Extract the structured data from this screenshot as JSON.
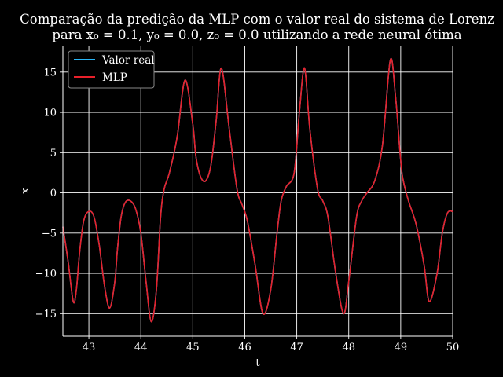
{
  "chart_data": {
    "type": "line",
    "title_line1": "Comparação da predição da MLP com o valor real do sistema de Lorenz",
    "title_line2": "para x₀ = 0.1, y₀ = 0.0, z₀ = 0.0 utilizando a rede neural ótima",
    "xlabel": "t",
    "ylabel": "x",
    "xlim": [
      42.5,
      50.0
    ],
    "ylim": [
      -17.8,
      18.3
    ],
    "xticks": [
      43,
      44,
      45,
      46,
      47,
      48,
      49,
      50
    ],
    "yticks": [
      15,
      10,
      5,
      0,
      -5,
      -10,
      -15
    ],
    "xtick_labels": [
      "43",
      "44",
      "45",
      "46",
      "47",
      "48",
      "49",
      "50"
    ],
    "ytick_labels": [
      "15",
      "10",
      "5",
      "0",
      "−5",
      "−10",
      "−15"
    ],
    "grid": true,
    "legend_position": "top-left",
    "background": "#000000",
    "foreground": "#ffffff",
    "series": [
      {
        "name": "Valor real",
        "color": "#29b6f6",
        "x": [
          42.5,
          42.6,
          42.7,
          42.76,
          42.82,
          42.9,
          43.0,
          43.1,
          43.2,
          43.3,
          43.4,
          43.5,
          43.55,
          43.62,
          43.7,
          43.8,
          43.9,
          44.0,
          44.1,
          44.2,
          44.3,
          44.38,
          44.45,
          44.55,
          44.7,
          44.85,
          45.0,
          45.06,
          45.15,
          45.25,
          45.35,
          45.45,
          45.55,
          45.7,
          45.85,
          45.95,
          46.05,
          46.2,
          46.35,
          46.5,
          46.62,
          46.7,
          46.8,
          46.95,
          47.05,
          47.15,
          47.25,
          47.4,
          47.5,
          47.6,
          47.75,
          47.9,
          48.0,
          48.15,
          48.25,
          48.35,
          48.5,
          48.65,
          48.8,
          48.9,
          49.0,
          49.05,
          49.15,
          49.3,
          49.45,
          49.55,
          49.7,
          49.8,
          49.9,
          50.0
        ],
        "y": [
          -4.2,
          -8.5,
          -13.5,
          -12.0,
          -7.5,
          -3.5,
          -2.3,
          -3.0,
          -6.5,
          -11.5,
          -14.3,
          -11.0,
          -7.0,
          -3.0,
          -1.2,
          -1.0,
          -2.0,
          -5.0,
          -11.0,
          -16.0,
          -12.0,
          -3.0,
          0.5,
          2.5,
          7.0,
          14.0,
          8.5,
          4.5,
          2.0,
          1.5,
          3.5,
          9.0,
          15.5,
          8.0,
          0.5,
          -1.5,
          -3.5,
          -9.0,
          -15.0,
          -12.0,
          -5.0,
          -1.0,
          0.8,
          2.5,
          10.0,
          15.5,
          8.0,
          0.5,
          -1.0,
          -3.0,
          -10.0,
          -15.0,
          -11.0,
          -3.0,
          -1.0,
          0.0,
          1.5,
          6.0,
          16.5,
          12.0,
          4.0,
          1.5,
          -1.0,
          -4.0,
          -9.0,
          -13.5,
          -10.0,
          -5.0,
          -2.5,
          -2.3
        ]
      },
      {
        "name": "MLP",
        "color": "#e8202a",
        "x": [
          42.5,
          42.6,
          42.7,
          42.76,
          42.82,
          42.9,
          43.0,
          43.1,
          43.2,
          43.3,
          43.4,
          43.5,
          43.55,
          43.62,
          43.7,
          43.8,
          43.9,
          44.0,
          44.1,
          44.2,
          44.3,
          44.38,
          44.45,
          44.55,
          44.7,
          44.85,
          45.0,
          45.06,
          45.15,
          45.25,
          45.35,
          45.45,
          45.55,
          45.7,
          45.85,
          45.95,
          46.05,
          46.2,
          46.35,
          46.5,
          46.62,
          46.7,
          46.8,
          46.95,
          47.05,
          47.15,
          47.25,
          47.4,
          47.5,
          47.6,
          47.75,
          47.9,
          48.0,
          48.15,
          48.25,
          48.35,
          48.5,
          48.65,
          48.8,
          48.9,
          49.0,
          49.05,
          49.15,
          49.3,
          49.45,
          49.55,
          49.7,
          49.8,
          49.9,
          50.0
        ],
        "y": [
          -4.2,
          -8.5,
          -13.5,
          -12.0,
          -7.5,
          -3.5,
          -2.3,
          -3.0,
          -6.5,
          -11.5,
          -14.3,
          -11.0,
          -7.0,
          -3.0,
          -1.2,
          -1.0,
          -2.0,
          -5.0,
          -11.0,
          -16.0,
          -12.0,
          -3.0,
          0.5,
          2.5,
          7.0,
          14.0,
          8.5,
          4.5,
          2.0,
          1.5,
          3.5,
          9.0,
          15.5,
          8.0,
          0.5,
          -1.5,
          -3.5,
          -9.0,
          -15.0,
          -12.0,
          -5.0,
          -1.0,
          0.8,
          2.5,
          10.0,
          15.5,
          8.0,
          0.5,
          -1.0,
          -3.0,
          -10.0,
          -15.0,
          -11.0,
          -3.0,
          -1.0,
          0.0,
          1.5,
          6.0,
          16.5,
          12.0,
          4.0,
          1.5,
          -1.0,
          -4.0,
          -9.0,
          -13.5,
          -10.0,
          -5.0,
          -2.5,
          -2.3
        ]
      }
    ]
  }
}
